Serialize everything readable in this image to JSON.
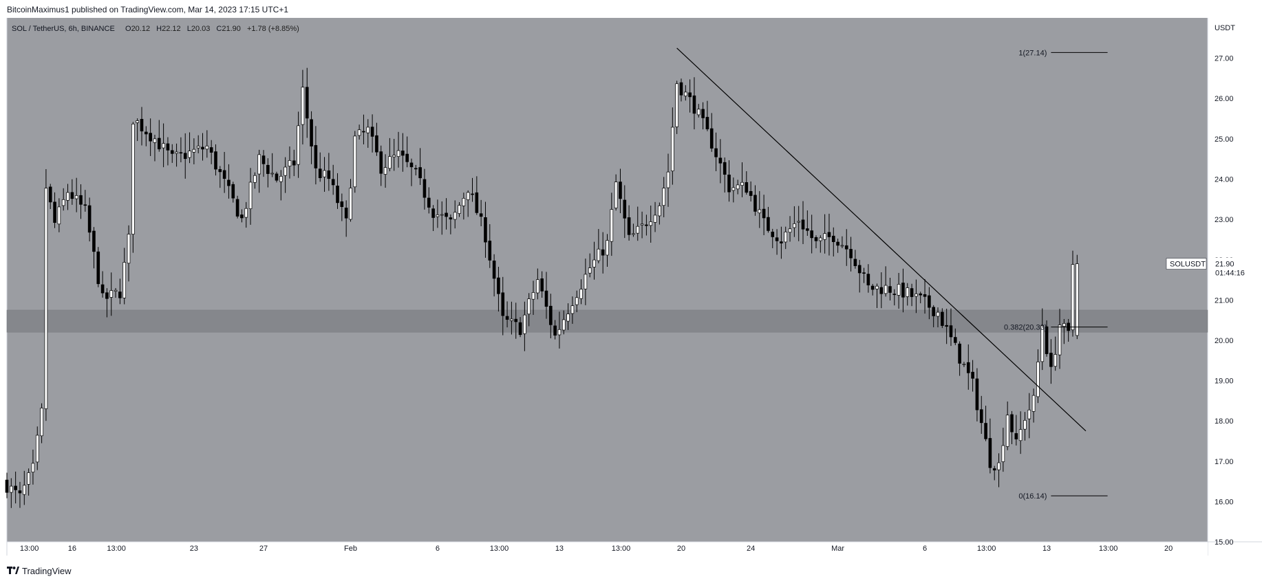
{
  "header": {
    "credit": "BitcoinMaximus1 published on TradingView.com, Mar 14, 2023 17:15 UTC+1"
  },
  "footer": {
    "brand": "TradingView"
  },
  "colors": {
    "chart_background": "#9b9da2",
    "support_zone": "#85878c",
    "candle_up_fill": "#ffffff",
    "candle_down_fill": "#000000",
    "candle_outline": "#000000",
    "trendline": "#000000",
    "price_tag_bg": "#ffffff"
  },
  "chart_data": {
    "type": "candlestick",
    "symbol_label": "SOL / TetherUS, 6h, BINANCE",
    "ohlc": {
      "o_label": "O",
      "o": "20.12",
      "h_label": "H",
      "h": "22.12",
      "l_label": "L",
      "l": "20.03",
      "c_label": "C",
      "c": "21.90",
      "change": "+1.78 (+8.85%)"
    },
    "price_axis_unit": "USDT",
    "ylim": [
      15.0,
      28.0
    ],
    "y_ticks": [
      {
        "value": 15,
        "label": "15.00"
      },
      {
        "value": 16,
        "label": "16.00"
      },
      {
        "value": 17,
        "label": "17.00"
      },
      {
        "value": 18,
        "label": "18.00"
      },
      {
        "value": 19,
        "label": "19.00"
      },
      {
        "value": 20,
        "label": "20.00"
      },
      {
        "value": 21,
        "label": "21.00"
      },
      {
        "value": 22,
        "label": "22.00"
      },
      {
        "value": 23,
        "label": "23.00"
      },
      {
        "value": 24,
        "label": "24.00"
      },
      {
        "value": 25,
        "label": "25.00"
      },
      {
        "value": 26,
        "label": "26.00"
      },
      {
        "value": 27,
        "label": "27.00"
      }
    ],
    "xlim": [
      "2023-01-12T06:00",
      "2023-03-22T06:00"
    ],
    "x_ticks": [
      {
        "t": "2023-01-13T13:00",
        "label": "13:00"
      },
      {
        "t": "2023-01-16T00:00",
        "label": "16"
      },
      {
        "t": "2023-01-18T13:00",
        "label": "13:00"
      },
      {
        "t": "2023-01-23T00:00",
        "label": "23"
      },
      {
        "t": "2023-01-27T00:00",
        "label": "27"
      },
      {
        "t": "2023-02-01T00:00",
        "label": "Feb"
      },
      {
        "t": "2023-02-06T00:00",
        "label": "6"
      },
      {
        "t": "2023-02-09T13:00",
        "label": "13:00"
      },
      {
        "t": "2023-02-13T00:00",
        "label": "13"
      },
      {
        "t": "2023-02-16T13:00",
        "label": "13:00"
      },
      {
        "t": "2023-02-20T00:00",
        "label": "20"
      },
      {
        "t": "2023-02-24T00:00",
        "label": "24"
      },
      {
        "t": "2023-03-01T00:00",
        "label": "Mar"
      },
      {
        "t": "2023-03-06T00:00",
        "label": "6"
      },
      {
        "t": "2023-03-09T13:00",
        "label": "13:00"
      },
      {
        "t": "2023-03-13T00:00",
        "label": "13"
      },
      {
        "t": "2023-03-16T13:00",
        "label": "13:00"
      },
      {
        "t": "2023-03-20T00:00",
        "label": "20"
      }
    ],
    "candles_anchor": [
      {
        "t": "2023-01-12T06:00",
        "p": 16.5
      },
      {
        "t": "2023-01-13T06:00",
        "p": 16.1
      },
      {
        "t": "2023-01-14T00:00",
        "p": 16.8
      },
      {
        "t": "2023-01-14T12:00",
        "p": 18.2
      },
      {
        "t": "2023-01-14T18:00",
        "p": 23.8
      },
      {
        "t": "2023-01-15T06:00",
        "p": 22.9
      },
      {
        "t": "2023-01-16T00:00",
        "p": 23.7
      },
      {
        "t": "2023-01-17T00:00",
        "p": 23.2
      },
      {
        "t": "2023-01-18T00:00",
        "p": 21.0
      },
      {
        "t": "2023-01-19T00:00",
        "p": 21.2
      },
      {
        "t": "2023-01-19T12:00",
        "p": 22.5
      },
      {
        "t": "2023-01-19T18:00",
        "p": 25.5
      },
      {
        "t": "2023-01-21T00:00",
        "p": 25.0
      },
      {
        "t": "2023-01-22T00:00",
        "p": 24.5
      },
      {
        "t": "2023-01-24T00:00",
        "p": 24.8
      },
      {
        "t": "2023-01-26T00:00",
        "p": 23.0
      },
      {
        "t": "2023-01-27T00:00",
        "p": 24.5
      },
      {
        "t": "2023-01-28T00:00",
        "p": 24.0
      },
      {
        "t": "2023-01-29T00:00",
        "p": 24.4
      },
      {
        "t": "2023-01-29T12:00",
        "p": 26.2
      },
      {
        "t": "2023-01-30T06:00",
        "p": 24.2
      },
      {
        "t": "2023-01-31T00:00",
        "p": 24.0
      },
      {
        "t": "2023-02-01T00:00",
        "p": 22.9
      },
      {
        "t": "2023-02-01T12:00",
        "p": 25.0
      },
      {
        "t": "2023-02-02T06:00",
        "p": 25.2
      },
      {
        "t": "2023-02-03T00:00",
        "p": 24.3
      },
      {
        "t": "2023-02-04T00:00",
        "p": 24.6
      },
      {
        "t": "2023-02-05T00:00",
        "p": 24.1
      },
      {
        "t": "2023-02-06T00:00",
        "p": 23.2
      },
      {
        "t": "2023-02-07T00:00",
        "p": 22.9
      },
      {
        "t": "2023-02-08T00:00",
        "p": 23.8
      },
      {
        "t": "2023-02-09T00:00",
        "p": 22.6
      },
      {
        "t": "2023-02-10T00:00",
        "p": 20.5
      },
      {
        "t": "2023-02-11T00:00",
        "p": 20.3
      },
      {
        "t": "2023-02-12T00:00",
        "p": 21.5
      },
      {
        "t": "2023-02-13T00:00",
        "p": 20.1
      },
      {
        "t": "2023-02-14T00:00",
        "p": 21.0
      },
      {
        "t": "2023-02-15T00:00",
        "p": 21.8
      },
      {
        "t": "2023-02-16T00:00",
        "p": 22.4
      },
      {
        "t": "2023-02-16T12:00",
        "p": 23.9
      },
      {
        "t": "2023-02-17T06:00",
        "p": 22.5
      },
      {
        "t": "2023-02-18T00:00",
        "p": 22.8
      },
      {
        "t": "2023-02-19T00:00",
        "p": 23.4
      },
      {
        "t": "2023-02-19T12:00",
        "p": 24.2
      },
      {
        "t": "2023-02-20T00:00",
        "p": 26.4
      },
      {
        "t": "2023-02-21T00:00",
        "p": 25.8
      },
      {
        "t": "2023-02-22T00:00",
        "p": 24.9
      },
      {
        "t": "2023-02-23T00:00",
        "p": 23.8
      },
      {
        "t": "2023-02-24T00:00",
        "p": 23.8
      },
      {
        "t": "2023-02-25T00:00",
        "p": 22.9
      },
      {
        "t": "2023-02-26T00:00",
        "p": 22.5
      },
      {
        "t": "2023-02-27T00:00",
        "p": 23.0
      },
      {
        "t": "2023-02-28T00:00",
        "p": 22.4
      },
      {
        "t": "2023-03-01T00:00",
        "p": 22.6
      },
      {
        "t": "2023-03-02T00:00",
        "p": 22.2
      },
      {
        "t": "2023-03-03T00:00",
        "p": 21.3
      },
      {
        "t": "2023-03-04T00:00",
        "p": 21.3
      },
      {
        "t": "2023-03-05T00:00",
        "p": 21.2
      },
      {
        "t": "2023-03-06T00:00",
        "p": 21.0
      },
      {
        "t": "2023-03-07T00:00",
        "p": 20.7
      },
      {
        "t": "2023-03-08T00:00",
        "p": 19.8
      },
      {
        "t": "2023-03-09T00:00",
        "p": 18.9
      },
      {
        "t": "2023-03-10T00:00",
        "p": 17.0
      },
      {
        "t": "2023-03-10T12:00",
        "p": 16.9
      },
      {
        "t": "2023-03-11T00:00",
        "p": 18.2
      },
      {
        "t": "2023-03-11T12:00",
        "p": 17.4
      },
      {
        "t": "2023-03-12T00:00",
        "p": 18.1
      },
      {
        "t": "2023-03-12T12:00",
        "p": 18.5
      },
      {
        "t": "2023-03-13T00:00",
        "p": 20.4
      },
      {
        "t": "2023-03-13T12:00",
        "p": 19.2
      },
      {
        "t": "2023-03-14T00:00",
        "p": 20.4
      },
      {
        "t": "2023-03-14T12:00",
        "p": 20.12
      },
      {
        "t": "2023-03-14T18:00",
        "p": 21.9
      }
    ],
    "support_zone": {
      "low": 20.2,
      "high": 20.75
    },
    "trendline": {
      "start": {
        "t": "2023-02-19T18:00",
        "price": 27.25
      },
      "end": {
        "t": "2023-03-15T06:00",
        "price": 17.75
      }
    },
    "fib_levels": [
      {
        "label": "1(27.14)",
        "price": 27.14
      },
      {
        "label": "0.382(20.33)",
        "price": 20.33
      },
      {
        "label": "0(16.14)",
        "price": 16.14
      }
    ],
    "fib_range": {
      "start": "2023-03-13T06:00",
      "end": "2023-03-16T12:00"
    },
    "last_price": {
      "symbol": "SOLUSDT",
      "price": "21.90",
      "countdown": "01:44:16",
      "value": 21.9
    }
  }
}
